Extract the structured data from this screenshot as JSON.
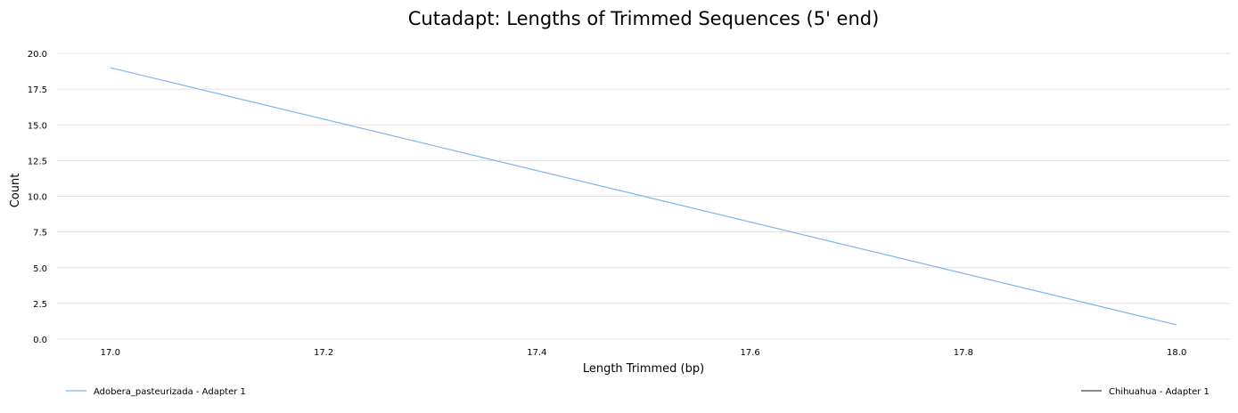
{
  "chart_data": {
    "type": "line",
    "title": "Cutadapt: Lengths of Trimmed Sequences (5' end)",
    "xlabel": "Length Trimmed (bp)",
    "ylabel": "Count",
    "xlim": [
      16.95,
      18.05
    ],
    "ylim": [
      0,
      20
    ],
    "x_ticks": [
      17.0,
      17.2,
      17.4,
      17.6,
      17.8,
      18.0
    ],
    "y_ticks": [
      0,
      2.5,
      5,
      7.5,
      10,
      12.5,
      15,
      17.5,
      20
    ],
    "grid": "horizontal",
    "legend_position": "bottom",
    "series": [
      {
        "name": "Adobera_pasteurizada - Adapter 1",
        "color": "#7cb5ec",
        "x": [
          17,
          18
        ],
        "y": [
          19,
          1
        ]
      },
      {
        "name": "Chihuahua - Adapter 1",
        "color": "#434348",
        "x": [],
        "y": []
      }
    ]
  }
}
